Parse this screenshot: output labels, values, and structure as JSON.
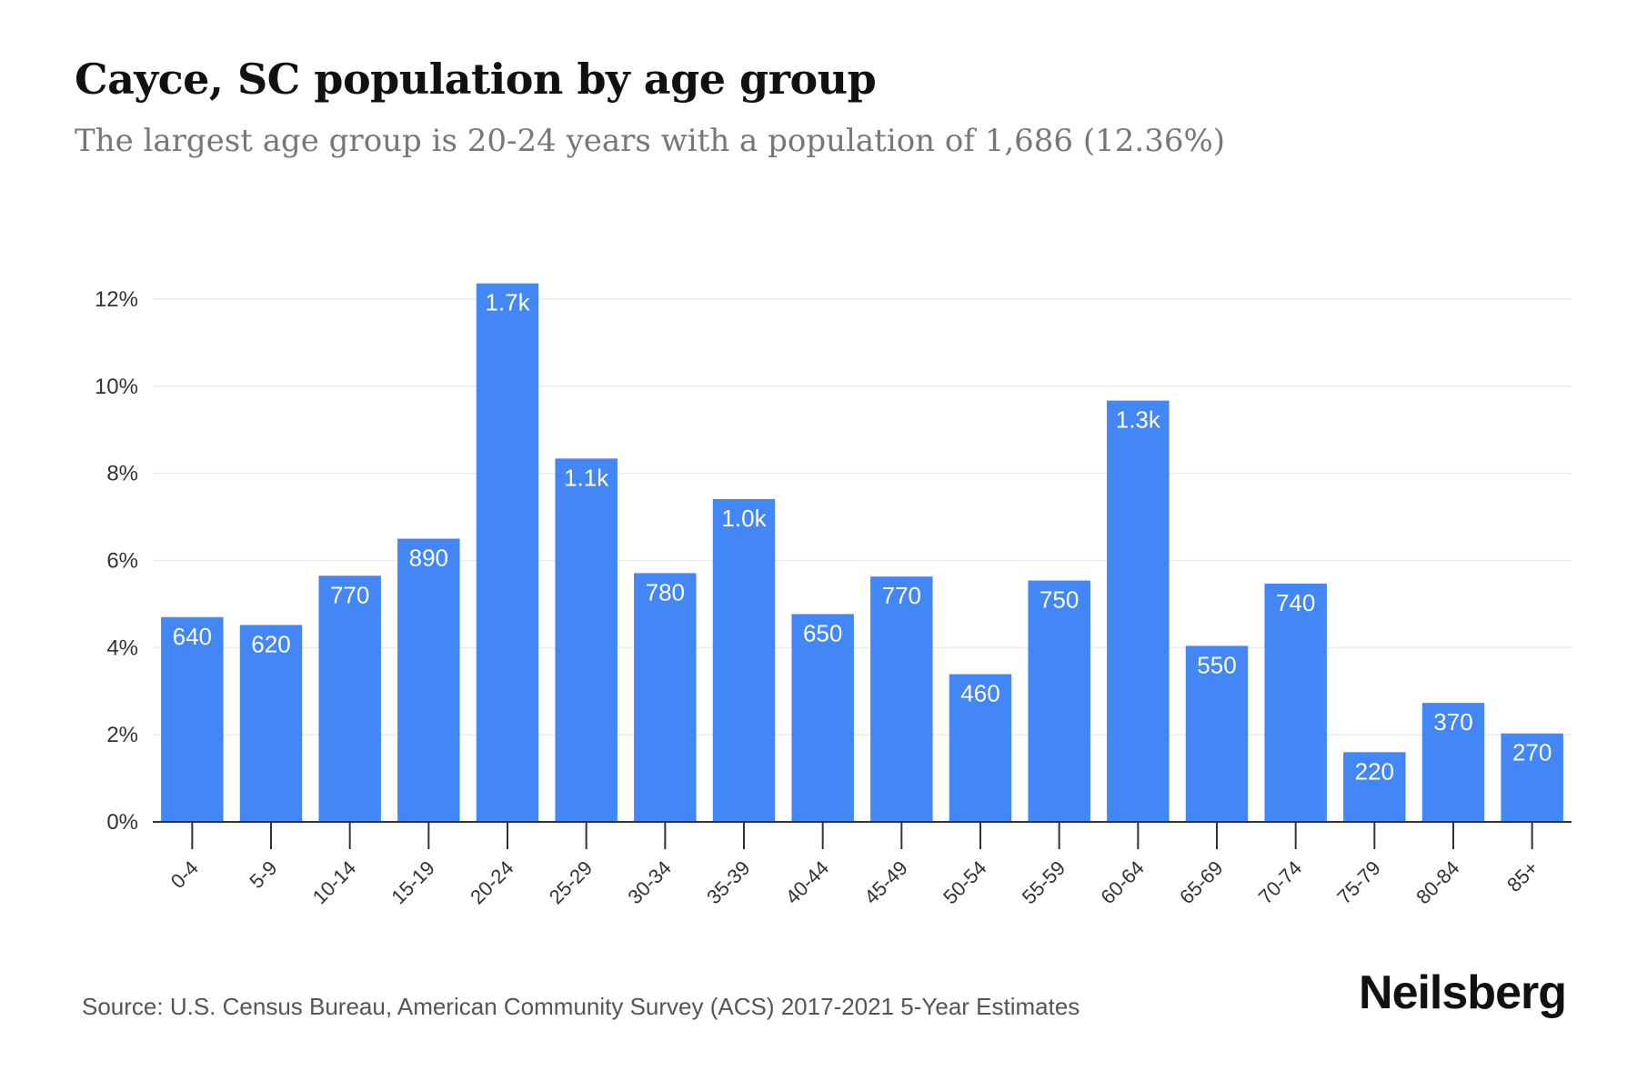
{
  "title": "Cayce, SC population by age group",
  "subtitle": "The largest age group is 20-24 years with a population of 1,686 (12.36%)",
  "source": "Source: U.S. Census Bureau, American Community Survey (ACS) 2017-2021 5-Year Estimates",
  "brand": "Neilsberg",
  "colors": {
    "bar": "#4287f5",
    "grid": "#ececec",
    "axis": "#333333"
  },
  "chart_data": {
    "type": "bar",
    "title": "Cayce, SC population by age group",
    "subtitle": "The largest age group is 20-24 years with a population of 1,686 (12.36%)",
    "xlabel": "",
    "ylabel": "",
    "categories": [
      "0-4",
      "5-9",
      "10-14",
      "15-19",
      "20-24",
      "25-29",
      "30-34",
      "35-39",
      "40-44",
      "45-49",
      "50-54",
      "55-59",
      "60-64",
      "65-69",
      "70-74",
      "75-79",
      "80-84",
      "85+"
    ],
    "values": [
      4.7,
      4.52,
      5.65,
      6.5,
      12.36,
      8.34,
      5.71,
      7.41,
      4.77,
      5.63,
      3.39,
      5.54,
      9.67,
      4.04,
      5.47,
      1.6,
      2.73,
      2.03
    ],
    "data_labels": [
      "640",
      "620",
      "770",
      "890",
      "1.7k",
      "1.1k",
      "780",
      "1.0k",
      "650",
      "770",
      "460",
      "750",
      "1.3k",
      "550",
      "740",
      "220",
      "370",
      "270"
    ],
    "yticks": [
      0,
      2,
      4,
      6,
      8,
      10,
      12
    ],
    "ytick_labels": [
      "0%",
      "2%",
      "4%",
      "6%",
      "8%",
      "10%",
      "12%"
    ],
    "ylim": [
      0,
      12.5
    ],
    "grid": true,
    "legend": "none"
  }
}
